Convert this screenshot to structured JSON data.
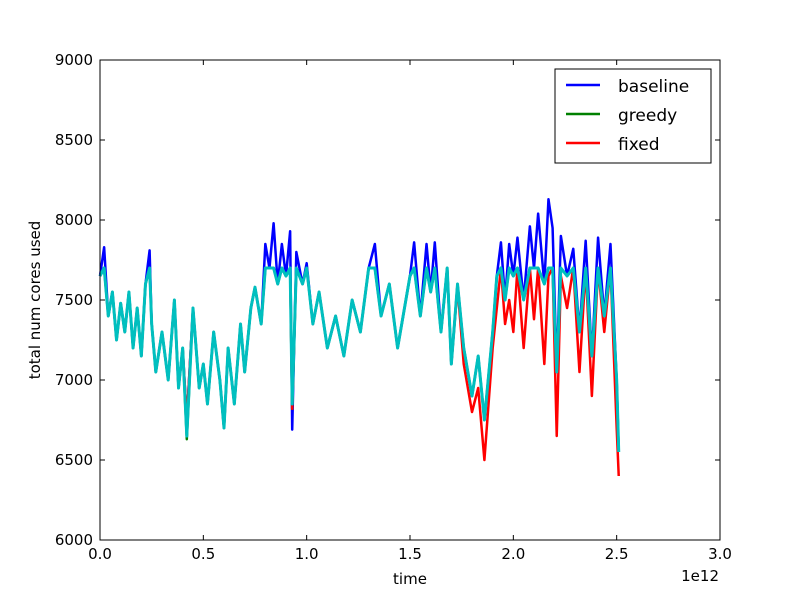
{
  "chart_data": {
    "type": "line",
    "title": "",
    "xlabel": "time",
    "ylabel": "total num cores used",
    "x_offset_label": "1e12",
    "xlim": [
      0.0,
      3.0
    ],
    "ylim": [
      6000,
      9000
    ],
    "x_ticks": [
      0.0,
      0.5,
      1.0,
      1.5,
      2.0,
      2.5,
      3.0
    ],
    "x_tick_labels": [
      "0.0",
      "0.5",
      "1.0",
      "1.5",
      "2.0",
      "2.5",
      "3.0"
    ],
    "y_ticks": [
      6000,
      6500,
      7000,
      7500,
      8000,
      8500,
      9000
    ],
    "y_tick_labels": [
      "6000",
      "6500",
      "7000",
      "7500",
      "8000",
      "8500",
      "9000"
    ],
    "grid": false,
    "legend_position": "top-right",
    "cap_value": 7700,
    "series": [
      {
        "name": "baseline",
        "color": "#0000ff",
        "x": [
          0.0,
          0.02,
          0.04,
          0.06,
          0.08,
          0.1,
          0.12,
          0.14,
          0.16,
          0.18,
          0.2,
          0.22,
          0.24,
          0.25,
          0.27,
          0.3,
          0.33,
          0.36,
          0.38,
          0.4,
          0.42,
          0.45,
          0.48,
          0.5,
          0.52,
          0.55,
          0.58,
          0.6,
          0.62,
          0.65,
          0.68,
          0.7,
          0.73,
          0.75,
          0.78,
          0.8,
          0.82,
          0.84,
          0.86,
          0.88,
          0.9,
          0.92,
          0.93,
          0.95,
          0.98,
          1.0,
          1.03,
          1.06,
          1.1,
          1.14,
          1.18,
          1.22,
          1.26,
          1.3,
          1.33,
          1.36,
          1.4,
          1.44,
          1.48,
          1.5,
          1.52,
          1.55,
          1.58,
          1.6,
          1.62,
          1.65,
          1.68,
          1.7,
          1.73,
          1.76,
          1.8,
          1.83,
          1.86,
          1.9,
          1.92,
          1.94,
          1.96,
          1.98,
          2.0,
          2.02,
          2.05,
          2.08,
          2.1,
          2.12,
          2.15,
          2.17,
          2.19,
          2.21,
          2.23,
          2.26,
          2.29,
          2.32,
          2.35,
          2.38,
          2.41,
          2.44,
          2.47,
          2.5,
          2.51
        ],
        "y": [
          7650,
          7830,
          7400,
          7550,
          7250,
          7480,
          7300,
          7550,
          7200,
          7450,
          7150,
          7600,
          7810,
          7350,
          7050,
          7300,
          7000,
          7500,
          6950,
          7200,
          6750,
          7450,
          6950,
          7100,
          6850,
          7300,
          7000,
          6700,
          7200,
          6850,
          7350,
          7050,
          7450,
          7580,
          7350,
          7850,
          7700,
          7980,
          7600,
          7850,
          7650,
          7930,
          6690,
          7800,
          7600,
          7730,
          7350,
          7550,
          7200,
          7400,
          7150,
          7500,
          7300,
          7700,
          7850,
          7400,
          7600,
          7200,
          7500,
          7650,
          7860,
          7400,
          7850,
          7550,
          7860,
          7300,
          7700,
          7100,
          7600,
          7200,
          6900,
          7150,
          6750,
          7300,
          7650,
          7860,
          7500,
          7850,
          7650,
          7890,
          7500,
          7960,
          7700,
          8040,
          7600,
          8130,
          7950,
          7050,
          7900,
          7650,
          7820,
          7300,
          7870,
          7150,
          7890,
          7400,
          7850,
          7000,
          6550
        ]
      },
      {
        "name": "greedy",
        "color": "#008000",
        "x": [
          0.0,
          0.02,
          0.04,
          0.06,
          0.08,
          0.1,
          0.12,
          0.14,
          0.16,
          0.18,
          0.2,
          0.22,
          0.24,
          0.25,
          0.27,
          0.3,
          0.33,
          0.36,
          0.38,
          0.4,
          0.42,
          0.45,
          0.48,
          0.5,
          0.52,
          0.55,
          0.58,
          0.6,
          0.62,
          0.65,
          0.68,
          0.7,
          0.73,
          0.75,
          0.78,
          0.8,
          0.82,
          0.84,
          0.86,
          0.88,
          0.9,
          0.92,
          0.93,
          0.95,
          0.98,
          1.0,
          1.03,
          1.06,
          1.1,
          1.14,
          1.18,
          1.22,
          1.26,
          1.3,
          1.33,
          1.36,
          1.4,
          1.44,
          1.48,
          1.5,
          1.52,
          1.55,
          1.58,
          1.6,
          1.62,
          1.65,
          1.68,
          1.7,
          1.73,
          1.76,
          1.8,
          1.83,
          1.86,
          1.9,
          1.92,
          1.94,
          1.96,
          1.98,
          2.0,
          2.02,
          2.05,
          2.08,
          2.1,
          2.12,
          2.15,
          2.17,
          2.19,
          2.21,
          2.23,
          2.26,
          2.29,
          2.32,
          2.35,
          2.38,
          2.41,
          2.44,
          2.47,
          2.5,
          2.51
        ],
        "y": [
          7650,
          7700,
          7400,
          7550,
          7250,
          7480,
          7300,
          7550,
          7200,
          7450,
          7150,
          7600,
          7700,
          7350,
          7050,
          7300,
          7000,
          7500,
          6950,
          7200,
          6630,
          7450,
          6950,
          7100,
          6850,
          7300,
          7000,
          6700,
          7200,
          6850,
          7350,
          7050,
          7450,
          7580,
          7350,
          7700,
          7700,
          7700,
          7600,
          7700,
          7650,
          7700,
          6820,
          7700,
          7600,
          7700,
          7350,
          7550,
          7200,
          7400,
          7150,
          7500,
          7300,
          7700,
          7700,
          7400,
          7600,
          7200,
          7500,
          7650,
          7700,
          7400,
          7700,
          7550,
          7700,
          7300,
          7700,
          7100,
          7600,
          7200,
          6900,
          7150,
          6750,
          7300,
          7650,
          7700,
          7500,
          7700,
          7650,
          7700,
          7500,
          7700,
          7700,
          7700,
          7600,
          7700,
          7700,
          7050,
          7700,
          7650,
          7700,
          7300,
          7700,
          7150,
          7700,
          7400,
          7700,
          7000,
          6550
        ]
      },
      {
        "name": "fixed",
        "color": "#ff0000",
        "x": [
          0.0,
          0.02,
          0.04,
          0.06,
          0.08,
          0.1,
          0.12,
          0.14,
          0.16,
          0.18,
          0.2,
          0.22,
          0.24,
          0.25,
          0.27,
          0.3,
          0.33,
          0.36,
          0.38,
          0.4,
          0.42,
          0.45,
          0.48,
          0.5,
          0.52,
          0.55,
          0.58,
          0.6,
          0.62,
          0.65,
          0.68,
          0.7,
          0.73,
          0.75,
          0.78,
          0.8,
          0.82,
          0.84,
          0.86,
          0.88,
          0.9,
          0.92,
          0.93,
          0.95,
          0.98,
          1.0,
          1.03,
          1.06,
          1.1,
          1.14,
          1.18,
          1.22,
          1.26,
          1.3,
          1.33,
          1.36,
          1.4,
          1.44,
          1.48,
          1.5,
          1.52,
          1.55,
          1.58,
          1.6,
          1.62,
          1.65,
          1.68,
          1.7,
          1.73,
          1.76,
          1.8,
          1.83,
          1.86,
          1.9,
          1.92,
          1.94,
          1.96,
          1.98,
          2.0,
          2.02,
          2.05,
          2.08,
          2.1,
          2.12,
          2.15,
          2.17,
          2.19,
          2.21,
          2.23,
          2.26,
          2.29,
          2.32,
          2.35,
          2.38,
          2.41,
          2.44,
          2.47,
          2.5,
          2.51
        ],
        "y": [
          7650,
          7700,
          7400,
          7550,
          7250,
          7480,
          7300,
          7550,
          7200,
          7450,
          7150,
          7600,
          7700,
          7350,
          7050,
          7300,
          7000,
          7500,
          6950,
          7200,
          6750,
          7450,
          6950,
          7100,
          6850,
          7300,
          7000,
          6700,
          7200,
          6850,
          7350,
          7050,
          7450,
          7580,
          7350,
          7700,
          7700,
          7700,
          7600,
          7700,
          7650,
          7700,
          6820,
          7700,
          7600,
          7700,
          7350,
          7550,
          7200,
          7400,
          7150,
          7500,
          7300,
          7700,
          7700,
          7400,
          7600,
          7200,
          7500,
          7650,
          7700,
          7400,
          7700,
          7550,
          7700,
          7300,
          7700,
          7100,
          7580,
          7100,
          6800,
          6950,
          6500,
          7200,
          7450,
          7700,
          7350,
          7500,
          7300,
          7700,
          7200,
          7700,
          7380,
          7700,
          7100,
          7650,
          7700,
          6650,
          7650,
          7450,
          7700,
          7050,
          7700,
          6900,
          7700,
          7300,
          7700,
          6700,
          6400
        ]
      },
      {
        "name": "",
        "color": "#00bfbf",
        "x": [
          0.0,
          0.02,
          0.04,
          0.06,
          0.08,
          0.1,
          0.12,
          0.14,
          0.16,
          0.18,
          0.2,
          0.22,
          0.24,
          0.25,
          0.27,
          0.3,
          0.33,
          0.36,
          0.38,
          0.4,
          0.42,
          0.45,
          0.48,
          0.5,
          0.52,
          0.55,
          0.58,
          0.6,
          0.62,
          0.65,
          0.68,
          0.7,
          0.73,
          0.75,
          0.78,
          0.8,
          0.82,
          0.84,
          0.86,
          0.88,
          0.9,
          0.92,
          0.93,
          0.95,
          0.98,
          1.0,
          1.03,
          1.06,
          1.1,
          1.14,
          1.18,
          1.22,
          1.26,
          1.3,
          1.33,
          1.36,
          1.4,
          1.44,
          1.48,
          1.5,
          1.52,
          1.55,
          1.58,
          1.6,
          1.62,
          1.65,
          1.68,
          1.7,
          1.73,
          1.76,
          1.8,
          1.83,
          1.86,
          1.9,
          1.92,
          1.94,
          1.96,
          1.98,
          2.0,
          2.02,
          2.05,
          2.08,
          2.1,
          2.12,
          2.15,
          2.17,
          2.19,
          2.21,
          2.23,
          2.26,
          2.29,
          2.32,
          2.35,
          2.38,
          2.41,
          2.44,
          2.47,
          2.5,
          2.51
        ],
        "y": [
          7650,
          7700,
          7400,
          7550,
          7250,
          7480,
          7300,
          7550,
          7200,
          7450,
          7150,
          7600,
          7700,
          7350,
          7050,
          7300,
          7000,
          7500,
          6950,
          7200,
          6650,
          7450,
          6950,
          7100,
          6850,
          7300,
          7000,
          6700,
          7200,
          6850,
          7350,
          7050,
          7450,
          7580,
          7350,
          7700,
          7700,
          7700,
          7600,
          7700,
          7650,
          7700,
          6850,
          7700,
          7600,
          7700,
          7350,
          7550,
          7200,
          7400,
          7150,
          7500,
          7300,
          7700,
          7700,
          7400,
          7600,
          7200,
          7500,
          7650,
          7700,
          7400,
          7700,
          7550,
          7700,
          7300,
          7700,
          7100,
          7600,
          7200,
          6900,
          7150,
          6750,
          7300,
          7650,
          7700,
          7500,
          7700,
          7650,
          7700,
          7500,
          7700,
          7700,
          7700,
          7600,
          7700,
          7700,
          7050,
          7700,
          7650,
          7700,
          7300,
          7700,
          7150,
          7700,
          7400,
          7700,
          7000,
          6550
        ]
      }
    ]
  }
}
